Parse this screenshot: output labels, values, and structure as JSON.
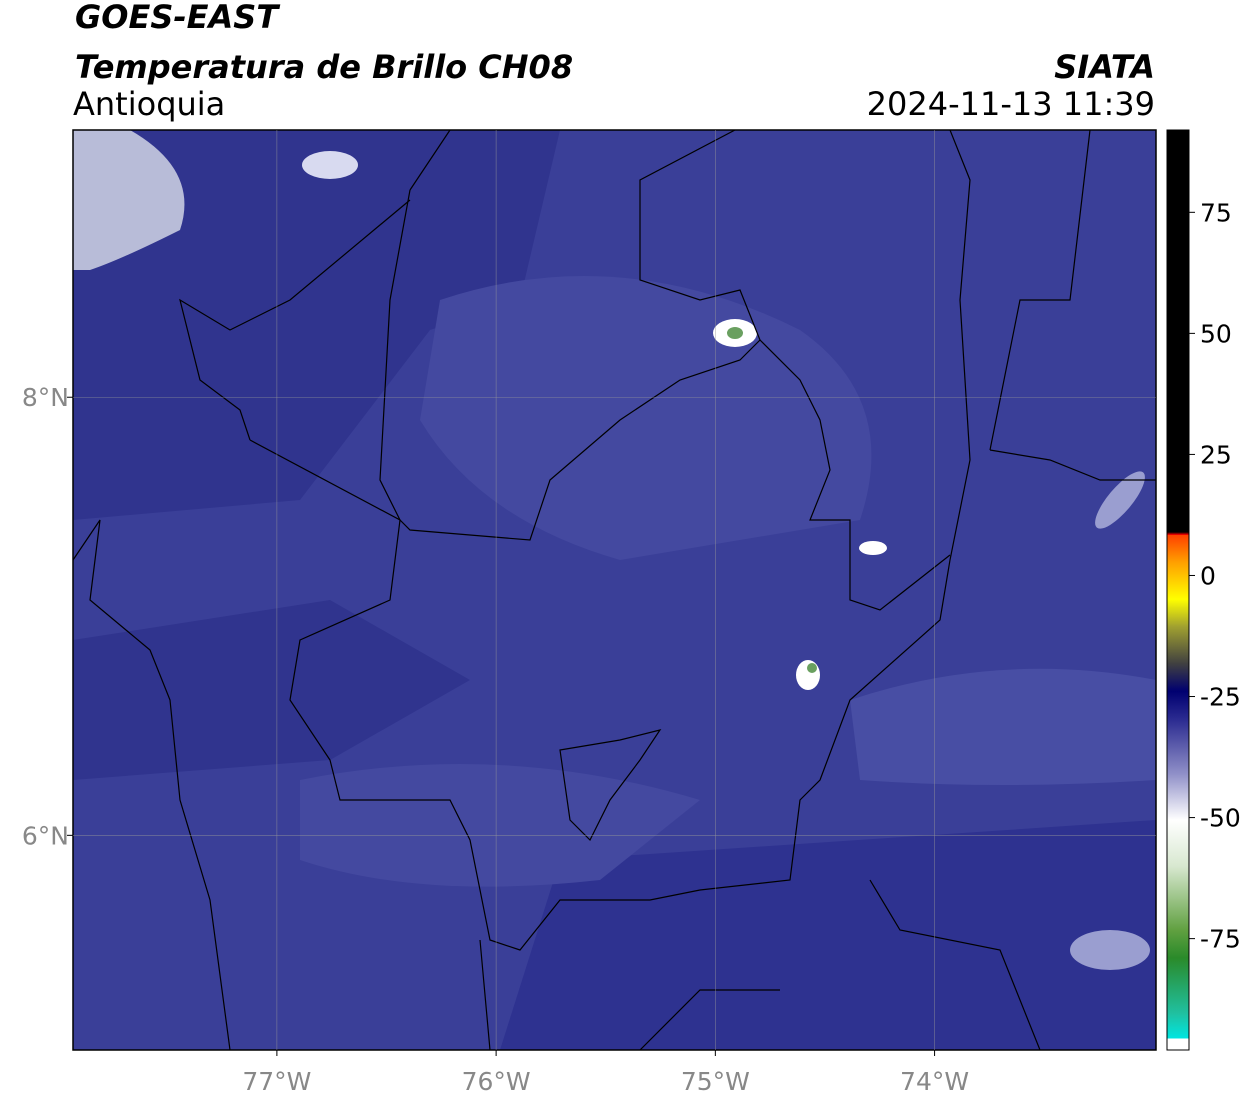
{
  "header": {
    "title": "GOES-EAST",
    "subtitle": "Temperatura de Brillo CH08",
    "region": "Antioquia",
    "source": "SIATA",
    "datetime": "2024-11-13 11:39"
  },
  "map": {
    "xlim": [
      -77.93,
      -72.99
    ],
    "ylim": [
      5.02,
      9.22
    ],
    "xticks": [
      {
        "value": -77,
        "label": "77°W"
      },
      {
        "value": -76,
        "label": "76°W"
      },
      {
        "value": -75,
        "label": "75°W"
      },
      {
        "value": -74,
        "label": "74°W"
      }
    ],
    "yticks": [
      {
        "value": 6,
        "label": "6°N"
      },
      {
        "value": 8,
        "label": "8°N"
      }
    ],
    "grid": true
  },
  "colorbar": {
    "lim": [
      -98,
      92
    ],
    "ticks": [
      -75,
      -50,
      -25,
      0,
      25,
      50,
      75
    ]
  }
}
